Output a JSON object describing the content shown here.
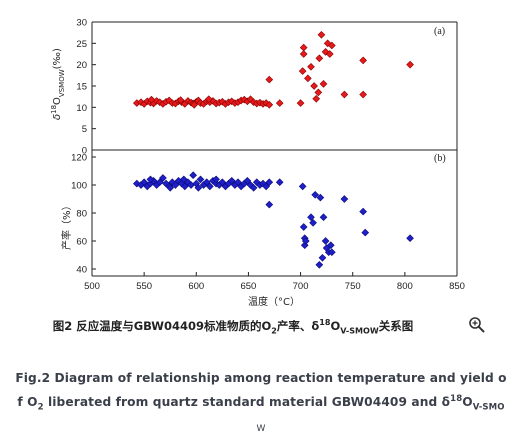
{
  "chart_data": [
    {
      "panel": "(a)",
      "type": "scatter",
      "ylabel_parts": {
        "delta": "δ",
        "sup": "18",
        "main": "O",
        "sub": "VSMOW",
        "unit": "(‰)"
      },
      "xlim": [
        500,
        850
      ],
      "ylim": [
        0,
        30
      ],
      "yticks": [
        0,
        5,
        10,
        15,
        20,
        25,
        30
      ],
      "color": "#e41a1c",
      "marker": "diamond",
      "points": [
        [
          543,
          11.0
        ],
        [
          547,
          11.2
        ],
        [
          550,
          10.8
        ],
        [
          553,
          11.4
        ],
        [
          556,
          11.1
        ],
        [
          559,
          10.9
        ],
        [
          562,
          11.5
        ],
        [
          565,
          11.2
        ],
        [
          568,
          10.8
        ],
        [
          571,
          11.3
        ],
        [
          574,
          11.6
        ],
        [
          577,
          11.0
        ],
        [
          580,
          10.9
        ],
        [
          583,
          11.4
        ],
        [
          586,
          11.2
        ],
        [
          589,
          10.8
        ],
        [
          592,
          11.5
        ],
        [
          595,
          11.1
        ],
        [
          597,
          10.9
        ],
        [
          600,
          11.3
        ],
        [
          602,
          11.6
        ],
        [
          604,
          11.0
        ],
        [
          607,
          10.8
        ],
        [
          610,
          11.4
        ],
        [
          613,
          11.2
        ],
        [
          616,
          11.5
        ],
        [
          619,
          10.9
        ],
        [
          622,
          11.1
        ],
        [
          625,
          11.3
        ],
        [
          628,
          10.8
        ],
        [
          631,
          11.2
        ],
        [
          634,
          11.4
        ],
        [
          637,
          11.0
        ],
        [
          640,
          11.2
        ],
        [
          643,
          11.6
        ],
        [
          646,
          11.8
        ],
        [
          649,
          11.4
        ],
        [
          652,
          11.9
        ],
        [
          655,
          11.2
        ],
        [
          658,
          10.9
        ],
        [
          661,
          11.1
        ],
        [
          664,
          10.8
        ],
        [
          667,
          11.0
        ],
        [
          670,
          10.6
        ],
        [
          557,
          11.8
        ],
        [
          585,
          11.7
        ],
        [
          612,
          11.9
        ],
        [
          598,
          10.6
        ],
        [
          670,
          16.5
        ],
        [
          680,
          11.0
        ],
        [
          700,
          11.0
        ],
        [
          702,
          18.5
        ],
        [
          703,
          22.5
        ],
        [
          703,
          24.0
        ],
        [
          707,
          16.8
        ],
        [
          710,
          19.5
        ],
        [
          713,
          15.0
        ],
        [
          715,
          12.0
        ],
        [
          717,
          13.5
        ],
        [
          718,
          21.5
        ],
        [
          720,
          27.0
        ],
        [
          722,
          15.5
        ],
        [
          724,
          23.0
        ],
        [
          726,
          25.0
        ],
        [
          728,
          22.5
        ],
        [
          730,
          24.5
        ],
        [
          742,
          13.0
        ],
        [
          760,
          21.0
        ],
        [
          760,
          13.0
        ],
        [
          805,
          20.0
        ]
      ]
    },
    {
      "panel": "(b)",
      "type": "scatter",
      "ylabel": "产率（%）",
      "xlabel": "温度（°C）",
      "xlim": [
        500,
        850
      ],
      "ylim": [
        35,
        125
      ],
      "xticks": [
        500,
        550,
        600,
        650,
        700,
        750,
        800,
        850
      ],
      "yticks": [
        40,
        60,
        80,
        100,
        120
      ],
      "color": "#1f1fc8",
      "marker": "diamond",
      "points": [
        [
          543,
          101
        ],
        [
          547,
          100
        ],
        [
          550,
          102
        ],
        [
          553,
          99
        ],
        [
          556,
          101
        ],
        [
          559,
          103
        ],
        [
          562,
          100
        ],
        [
          565,
          102
        ],
        [
          568,
          105
        ],
        [
          571,
          101
        ],
        [
          574,
          99
        ],
        [
          577,
          102
        ],
        [
          580,
          100
        ],
        [
          583,
          103
        ],
        [
          586,
          101
        ],
        [
          589,
          99
        ],
        [
          592,
          102
        ],
        [
          595,
          100
        ],
        [
          597,
          107
        ],
        [
          600,
          101
        ],
        [
          602,
          98
        ],
        [
          604,
          104
        ],
        [
          607,
          100
        ],
        [
          610,
          102
        ],
        [
          613,
          99
        ],
        [
          616,
          103
        ],
        [
          619,
          101
        ],
        [
          622,
          100
        ],
        [
          625,
          102
        ],
        [
          628,
          99
        ],
        [
          631,
          101
        ],
        [
          634,
          103
        ],
        [
          637,
          100
        ],
        [
          640,
          102
        ],
        [
          643,
          99
        ],
        [
          646,
          101
        ],
        [
          649,
          103
        ],
        [
          652,
          100
        ],
        [
          655,
          98
        ],
        [
          658,
          102
        ],
        [
          661,
          100
        ],
        [
          664,
          101
        ],
        [
          667,
          99
        ],
        [
          670,
          102
        ],
        [
          556,
          104
        ],
        [
          588,
          104
        ],
        [
          619,
          104
        ],
        [
          575,
          98
        ],
        [
          670,
          86
        ],
        [
          680,
          102
        ],
        [
          702,
          99
        ],
        [
          703,
          70
        ],
        [
          704,
          62
        ],
        [
          704,
          57
        ],
        [
          705,
          60
        ],
        [
          710,
          77
        ],
        [
          712,
          73
        ],
        [
          714,
          93
        ],
        [
          718,
          43
        ],
        [
          719,
          91
        ],
        [
          721,
          48
        ],
        [
          722,
          77
        ],
        [
          724,
          60
        ],
        [
          725,
          55
        ],
        [
          727,
          52
        ],
        [
          729,
          57
        ],
        [
          730,
          52
        ],
        [
          742,
          90
        ],
        [
          760,
          81
        ],
        [
          762,
          66
        ],
        [
          805,
          62
        ]
      ]
    }
  ],
  "caption_cn": {
    "prefix": "图2 反应温度与GBW04409标准物质的O",
    "sub1": "2",
    "mid": "产率、δ",
    "sup": "18",
    "o": "O",
    "sub2": "V-SMOW",
    "suffix": "关系图"
  },
  "caption_en": {
    "line1": "Fig.2 Diagram of relationship among reaction temperature and yield o",
    "line2_pre": "f O",
    "line2_sub": "2",
    "line2_mid": " liberated from quartz standard material GBW04409 and δ",
    "line2_sup": "18",
    "line2_o": "O",
    "line2_sub2": "V-SMO",
    "line3": "W"
  },
  "zoom_icon": "zoom-in-icon"
}
